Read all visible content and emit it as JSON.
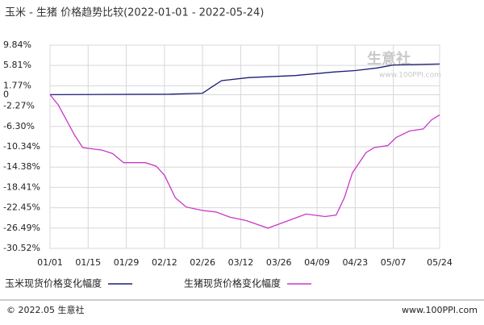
{
  "chart_data": {
    "type": "line",
    "title": "玉米 - 生猪 价格趋势比较(2022-01-01 - 2022-05-24)",
    "watermark": "生意社",
    "watermark_url": "www.100PPI.com",
    "footer_left": "© 2022.05 生意社",
    "footer_right": "www.100PPI.com",
    "xlim": [
      "01/01",
      "05/24"
    ],
    "xticks": [
      "01/01",
      "01/15",
      "01/29",
      "02/12",
      "02/26",
      "03/12",
      "03/26",
      "04/09",
      "04/23",
      "05/07",
      "05/24"
    ],
    "ylim": [
      -30.52,
      9.84
    ],
    "yticks": [
      {
        "value": 9.84,
        "label": "9.84%"
      },
      {
        "value": 5.81,
        "label": "5.81%"
      },
      {
        "value": 1.77,
        "label": "1.77%"
      },
      0,
      {
        "value": -2.27,
        "label": "-2.27%"
      },
      {
        "value": -6.3,
        "label": "-6.30%"
      },
      {
        "value": -10.34,
        "label": "-10.34%"
      },
      {
        "value": -14.38,
        "label": "-14.38%"
      },
      {
        "value": -18.41,
        "label": "-18.41%"
      },
      {
        "value": -22.45,
        "label": "-22.45%"
      },
      {
        "value": -26.49,
        "label": "-26.49%"
      },
      {
        "value": -30.52,
        "label": "-30.52%"
      }
    ],
    "grid": true,
    "series": [
      {
        "name": "玉米现货价格变化幅度",
        "color": "#1c1c78",
        "x": [
          "01/01",
          "02/14",
          "02/26",
          "03/01",
          "03/05",
          "03/15",
          "04/01",
          "04/15",
          "04/23",
          "05/01",
          "05/07",
          "05/24"
        ],
        "values": [
          0,
          0.1,
          0.3,
          1.4,
          2.8,
          3.4,
          3.8,
          4.5,
          4.8,
          5.3,
          5.9,
          6.1
        ]
      },
      {
        "name": "生猪现货价格变化幅度",
        "color": "#c838c8",
        "x": [
          "01/01",
          "01/04",
          "01/07",
          "01/10",
          "01/13",
          "01/20",
          "01/24",
          "01/28",
          "02/05",
          "02/09",
          "02/12",
          "02/16",
          "02/20",
          "02/26",
          "03/03",
          "03/08",
          "03/14",
          "03/22",
          "03/28",
          "04/05",
          "04/12",
          "04/16",
          "04/19",
          "04/22",
          "04/27",
          "04/30",
          "05/05",
          "05/08",
          "05/13",
          "05/18",
          "05/21",
          "05/24"
        ],
        "values": [
          0,
          -2,
          -5,
          -8,
          -10.5,
          -11,
          -11.7,
          -13.5,
          -13.5,
          -14.2,
          -16,
          -20.5,
          -22.3,
          -23,
          -23.3,
          -24.3,
          -25,
          -26.5,
          -25.3,
          -23.7,
          -24.2,
          -23.9,
          -20.5,
          -15.5,
          -11.5,
          -10.5,
          -10.1,
          -8.5,
          -7.2,
          -6.8,
          -5,
          -4
        ]
      }
    ]
  }
}
